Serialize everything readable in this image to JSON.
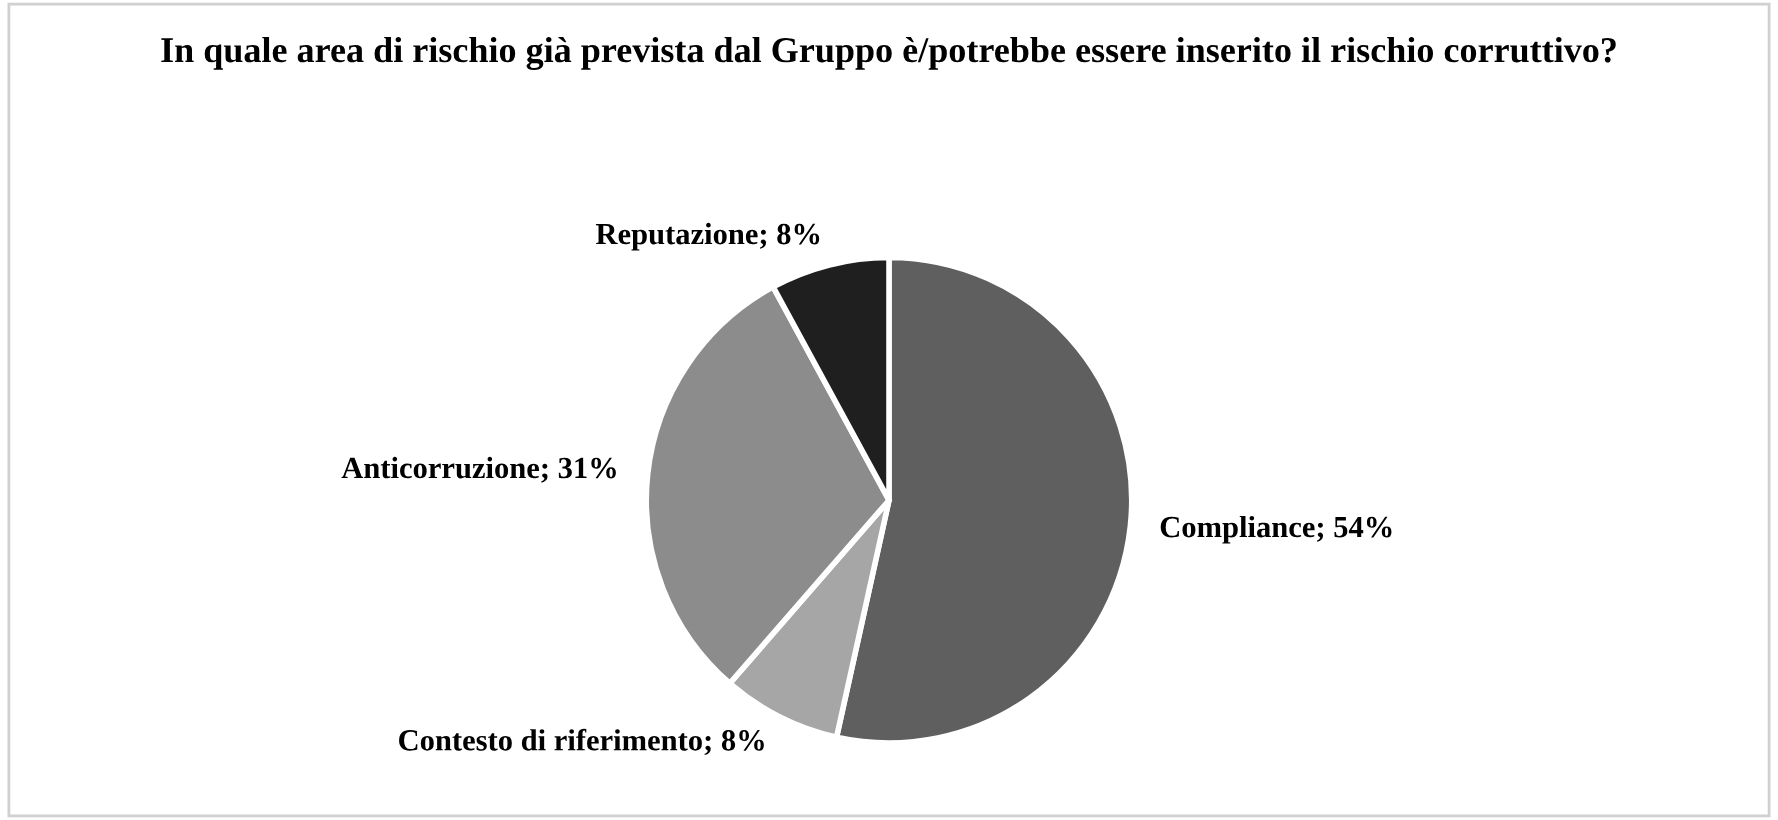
{
  "chart_data": {
    "type": "pie",
    "title": "In quale area di rischio già prevista dal Gruppo è/potrebbe essere inserito il rischio corruttivo?",
    "categories": [
      "Compliance",
      "Contesto di riferimento",
      "Anticorruzione",
      "Reputazione"
    ],
    "values": [
      54,
      8,
      31,
      8
    ],
    "value_labels": [
      "54%",
      "8%",
      "31%",
      "8%"
    ],
    "colors": [
      "#5f5f5f",
      "#a6a6a6",
      "#8c8c8c",
      "#1f1f1f"
    ],
    "legend": false
  }
}
